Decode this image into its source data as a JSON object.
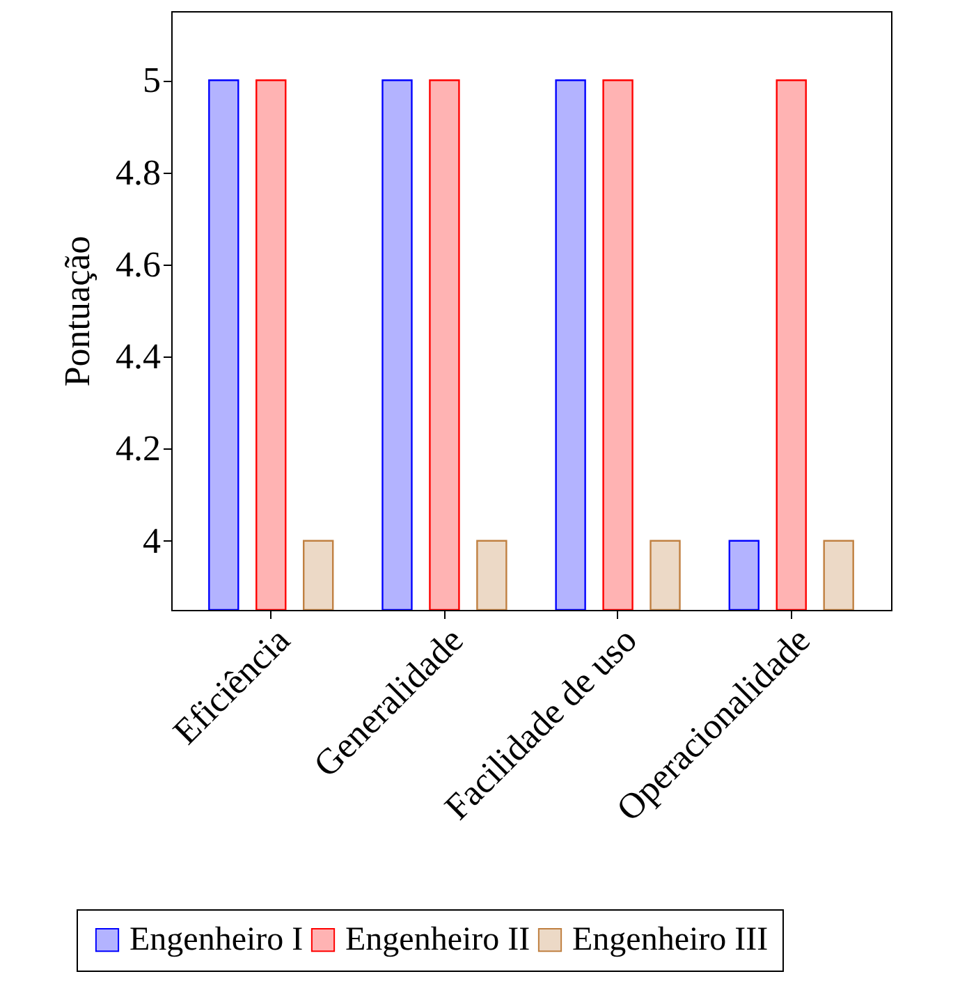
{
  "chart_data": {
    "type": "bar",
    "ylabel": "Pontuação",
    "categories": [
      "Eficiência",
      "Generalidade",
      "Facilidade de uso",
      "Operacionalidade"
    ],
    "series": [
      {
        "name": "Engenheiro I",
        "color": "#b3b3ff",
        "values": [
          5,
          5,
          5,
          4
        ]
      },
      {
        "name": "Engenheiro II",
        "color": "#ffb3b3",
        "values": [
          5,
          5,
          5,
          5
        ]
      },
      {
        "name": "Engenheiro III",
        "color": "#ecd9c6",
        "values": [
          4,
          4,
          4,
          4
        ]
      }
    ],
    "ylim": [
      3.85,
      5.15
    ],
    "yticks": [
      4,
      4.2,
      4.4,
      4.6,
      4.8,
      5
    ],
    "grid": false,
    "legend": "bottom"
  }
}
